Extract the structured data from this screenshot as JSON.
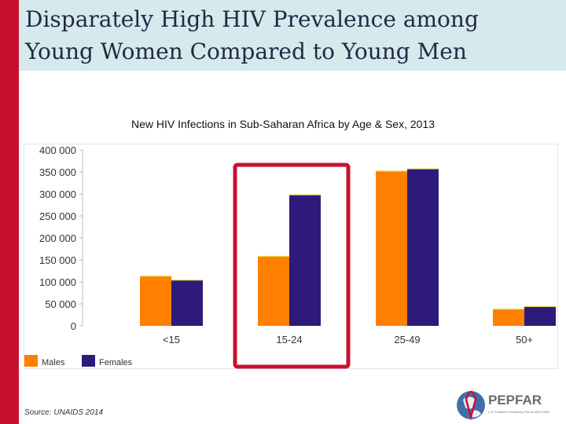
{
  "slide": {
    "title_line1": "Disparately High HIV Prevalence among",
    "title_line2": "Young Women Compared to Young Men",
    "source": "Source: UNAIDS 2014",
    "accent_color": "#c8102e",
    "title_band_color": "#d6e9ec"
  },
  "logo": {
    "name": "PEPFAR",
    "tagline": "U.S. President's Emergency Plan for AIDS Relief"
  },
  "chart_data": {
    "type": "bar",
    "title": "New HIV Infections in Sub-Saharan Africa by Age & Sex, 2013",
    "categories": [
      "<15",
      "15-24",
      "25-49",
      "50+"
    ],
    "series": [
      {
        "name": "Males",
        "color": "#ff7f00",
        "values": [
          113000,
          158000,
          352000,
          38000
        ]
      },
      {
        "name": "Females",
        "color": "#2e1a7a",
        "values": [
          104000,
          298000,
          357000,
          44000
        ]
      }
    ],
    "y_ticks": [
      "400 000",
      "350 000",
      "300 000",
      "250 000",
      "200 000",
      "150 000",
      "100 000",
      "50 000",
      "0"
    ],
    "ylim": [
      0,
      400000
    ],
    "legend_position": "bottom-left",
    "highlight_category": "15-24",
    "highlight_color": "#c8102e"
  }
}
